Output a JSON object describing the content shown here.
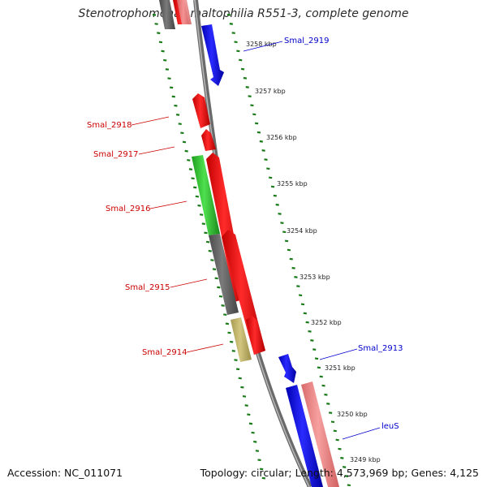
{
  "title": "Stenotrophomonas maltophilia R551-3, complete genome",
  "footer": {
    "accession": "Accession: NC_011071",
    "topology": "Topology: circular; Length: 4,573,969 bp; Genes: 4,125"
  },
  "ruler_ticks": [
    "3258 kbp",
    "3257 kbp",
    "3256 kbp",
    "3255 kbp",
    "3254 kbp",
    "3253 kbp",
    "3252 kbp",
    "3251 kbp",
    "3250 kbp",
    "3249 kbp"
  ],
  "gene_labels": {
    "smal_2919": "Smal_2919",
    "smal_2918": "Smal_2918",
    "smal_2917": "Smal_2917",
    "smal_2916": "Smal_2916",
    "smal_2915": "Smal_2915",
    "smal_2914": "Smal_2914",
    "smal_2913": "Smal_2913",
    "leus": "leuS"
  },
  "colors": {
    "forward_label": "#0000cc",
    "reverse_label": "#cc0000",
    "cds_red": "#ff0000",
    "cds_blue": "#0000ff",
    "cds_pink": "#f08080",
    "cds_green": "#33cc33",
    "cds_gray": "#6b6b6b",
    "cds_khaki": "#c8bc70",
    "backbone": "#808080",
    "dotted_track": "#1a7a1a"
  }
}
